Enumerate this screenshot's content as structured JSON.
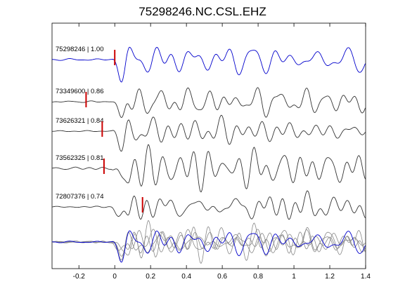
{
  "chart_data": {
    "type": "line",
    "title": "75298246.NC.CSL.EHZ",
    "xlabel": "",
    "ylabel": "",
    "xlim": [
      -0.35,
      1.4
    ],
    "xticks": [
      -0.2,
      0,
      0.2,
      0.4,
      0.6,
      0.8,
      1,
      1.2,
      1.4
    ],
    "xtick_labels": [
      "-0.2",
      "0",
      "0.2",
      "0.4",
      "0.6",
      "0.8",
      "1",
      "1.2",
      "1.4"
    ],
    "grid": false,
    "pick_color": "#cc0000",
    "main_color": "#0000cc",
    "trace_color": "#333333",
    "stack_color": "#888888",
    "traces": [
      {
        "label": "75298246 | 1.00",
        "pick_time": 0.0,
        "color": "#0000cc"
      },
      {
        "label": "73349600 | 0.86",
        "pick_time": -0.16,
        "color": "#333333"
      },
      {
        "label": "73626321 | 0.84",
        "pick_time": -0.07,
        "color": "#333333"
      },
      {
        "label": "73562325 | 0.81",
        "pick_time": -0.06,
        "color": "#333333"
      },
      {
        "label": "72807376 | 0.74",
        "pick_time": 0.155,
        "color": "#333333"
      }
    ],
    "stack": {
      "overlay_count": 5
    }
  }
}
